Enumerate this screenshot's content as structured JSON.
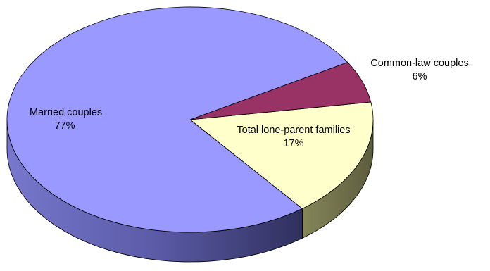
{
  "chart_data": {
    "type": "pie",
    "style": "3d-tilted",
    "slices": [
      {
        "name": "Married couples",
        "value": 77,
        "label": "77%",
        "color": "#9999ff"
      },
      {
        "name": "Common-law couples",
        "value": 6,
        "label": "6%",
        "color": "#993366"
      },
      {
        "name": "Total lone-parent families",
        "value": 17,
        "label": "17%",
        "color": "#ffffcc"
      }
    ],
    "title": "",
    "legend": "none"
  }
}
